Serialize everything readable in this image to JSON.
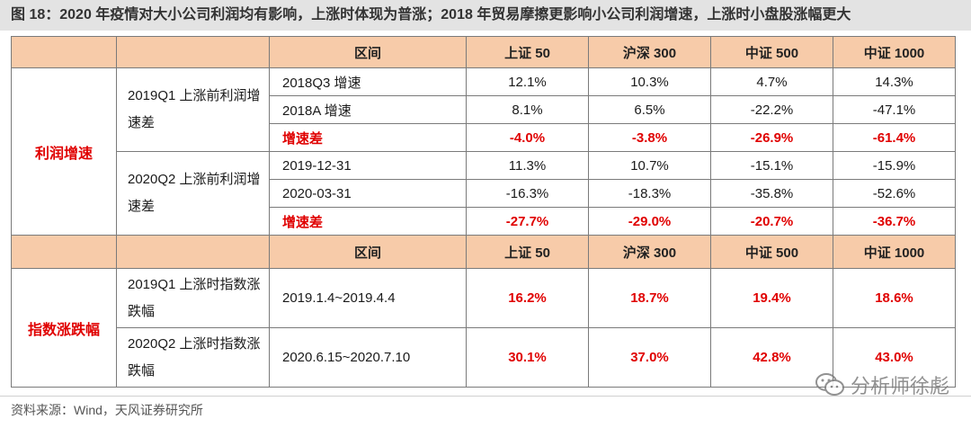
{
  "figure": {
    "title": "图 18：2020 年疫情对大小公司利润均有影响，上涨时体现为普涨；2018 年贸易摩擦更影响小公司利润增速，上涨时小盘股涨幅更大"
  },
  "header": {
    "interval": "区间",
    "cols": [
      "上证 50",
      "沪深 300",
      "中证 500",
      "中证 1000"
    ]
  },
  "section1": {
    "label": "利润增速",
    "groups": [
      {
        "label": "2019Q1 上涨前利润增速差",
        "rows": [
          {
            "label": "2018Q3 增速",
            "values": [
              "12.1%",
              "10.3%",
              "4.7%",
              "14.3%"
            ]
          },
          {
            "label": "2018A 增速",
            "values": [
              "8.1%",
              "6.5%",
              "-22.2%",
              "-47.1%"
            ]
          },
          {
            "label": "增速差",
            "values": [
              "-4.0%",
              "-3.8%",
              "-26.9%",
              "-61.4%"
            ]
          }
        ]
      },
      {
        "label": "2020Q2 上涨前利润增速差",
        "rows": [
          {
            "label": "2019-12-31",
            "values": [
              "11.3%",
              "10.7%",
              "-15.1%",
              "-15.9%"
            ]
          },
          {
            "label": "2020-03-31",
            "values": [
              "-16.3%",
              "-18.3%",
              "-35.8%",
              "-52.6%"
            ]
          },
          {
            "label": "增速差",
            "values": [
              "-27.7%",
              "-29.0%",
              "-20.7%",
              "-36.7%"
            ]
          }
        ]
      }
    ]
  },
  "section2": {
    "label": "指数涨跌幅",
    "groups": [
      {
        "label": "2019Q1 上涨时指数涨跌幅",
        "interval": "2019.1.4~2019.4.4",
        "values": [
          "16.2%",
          "18.7%",
          "19.4%",
          "18.6%"
        ]
      },
      {
        "label": "2020Q2 上涨时指数涨跌幅",
        "interval": "2020.6.15~2020.7.10",
        "values": [
          "30.1%",
          "37.0%",
          "42.8%",
          "43.0%"
        ]
      }
    ]
  },
  "source": "资料来源：Wind，天风证券研究所",
  "watermark": "分析师徐彪",
  "colors": {
    "header_bg": "#f7cba9",
    "accent_red": "#e00000",
    "title_bg": "#e3e3e3"
  }
}
